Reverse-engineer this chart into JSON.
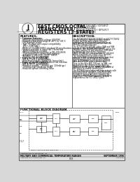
{
  "bg_color": "#d8d8d8",
  "page_color": "#ffffff",
  "title_lines": [
    "FAST CMOS OCTAL",
    "TRANSCEIVER/",
    "REGISTERS (3-STATE)"
  ],
  "part_numbers_line1": "IDT54FCT2652ATD / IDT54FCT",
  "part_numbers_line2": "IDT74FCT2652ATD",
  "part_numbers_line3": "IDT54FCT2652CTD / IDT54FCT",
  "part_numbers_line4": "IDT74FCT2652CTD",
  "company_text": "Integrated Device Technology, Inc.",
  "features_title": "FEATURES:",
  "description_title": "DESCRIPTION:",
  "diagram_title": "FUNCTIONAL BLOCK DIAGRAM",
  "footer_left": "MILITARY AND COMMERCIAL TEMPERATURE RANGES",
  "footer_right": "SEPTEMBER 1996",
  "footer_part": "5103",
  "doc_num": "006 00001",
  "footer_company": "Integrated Device Technology, Inc."
}
